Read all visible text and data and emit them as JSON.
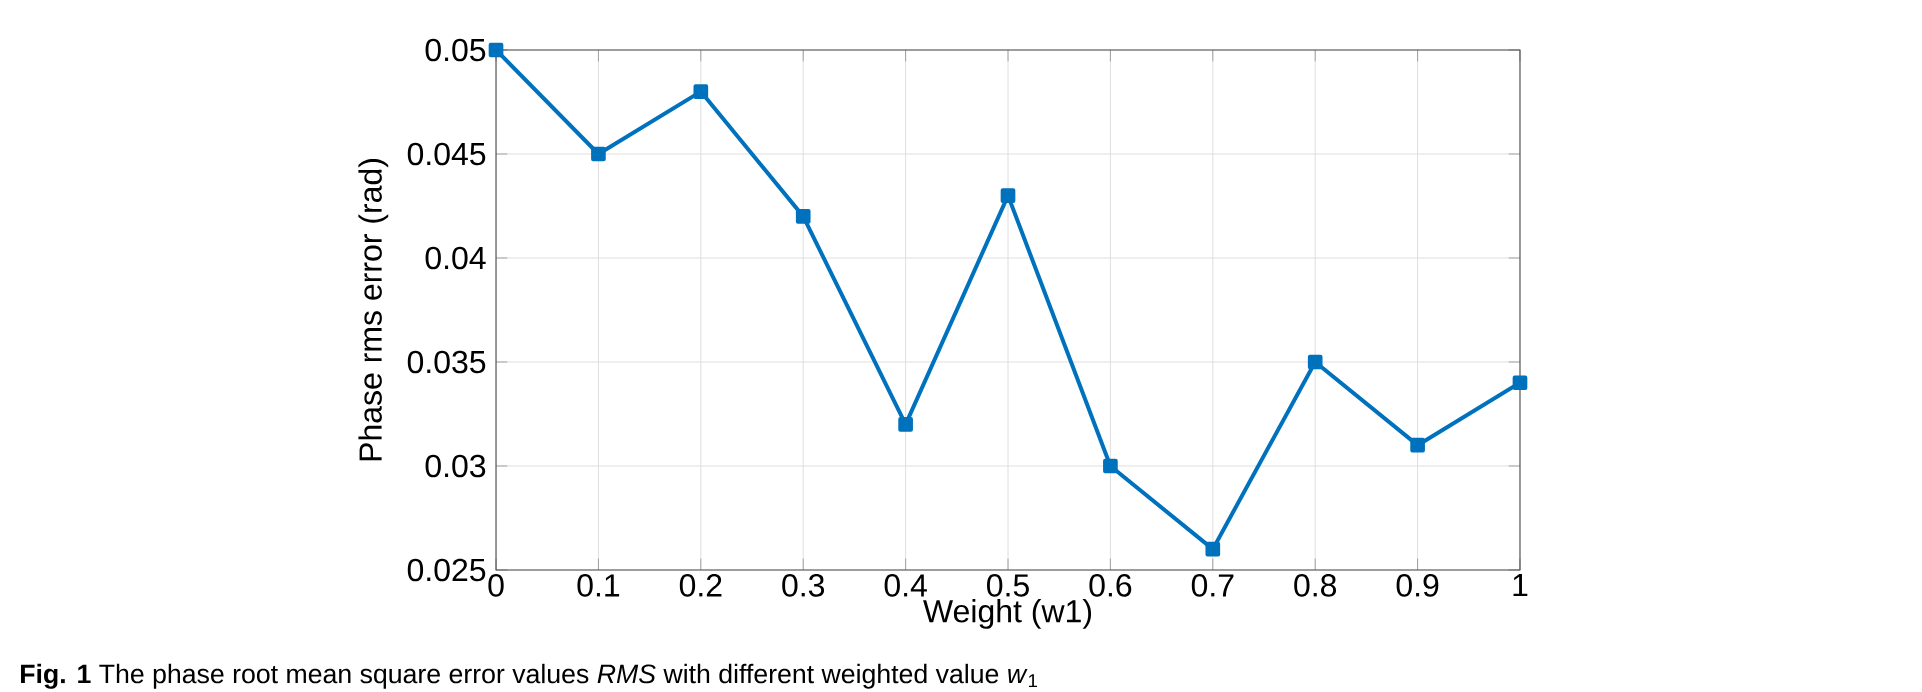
{
  "chart_data": {
    "type": "line",
    "xlabel": "Weight (w1)",
    "ylabel": "Phase rms error (rad)",
    "annotations": [
      "**Fig. 1** The phase root mean square error values *RMS* with different weighted value *w*$_{1}$"
    ],
    "x": [
      0,
      0.1,
      0.2,
      0.3,
      0.4,
      0.5,
      0.6,
      0.7,
      0.8,
      0.9,
      1
    ],
    "series": [
      {
        "color": "#0072bd",
        "values": [
          0.05,
          0.045,
          0.048,
          0.042,
          0.032,
          0.043,
          0.03,
          0.026,
          0.035,
          0.031,
          0.034
        ]
      }
    ],
    "xlim": [
      0,
      1
    ],
    "ylim": [
      0.025,
      0.05
    ],
    "xticks": [
      0,
      0.1,
      0.2,
      0.3,
      0.4,
      0.5,
      0.6,
      0.7,
      0.8,
      0.9,
      1
    ],
    "yticks": [
      0.025,
      0.03,
      0.035,
      0.04,
      0.045,
      0.05
    ],
    "grid": true,
    "marker": "square",
    "line_style": "solid"
  }
}
